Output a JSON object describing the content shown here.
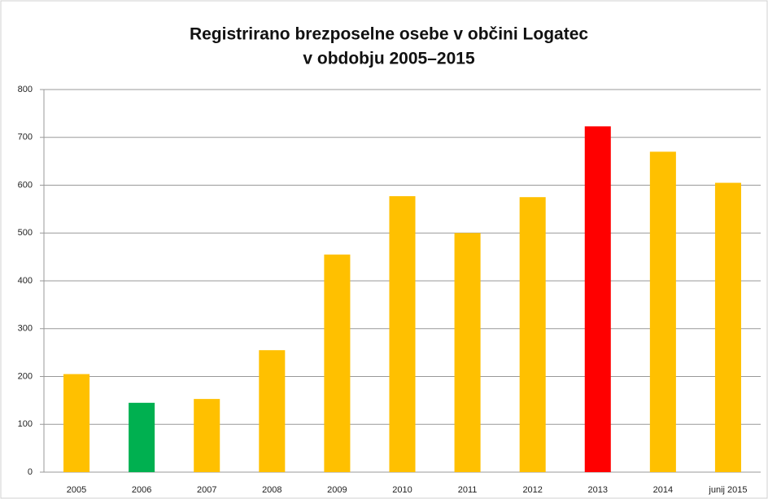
{
  "chart_data": {
    "type": "bar",
    "title": [
      "Registrirano brezposelne osebe v občini Logatec",
      "v obdobju 2005–2015"
    ],
    "categories": [
      "2005",
      "2006",
      "2007",
      "2008",
      "2009",
      "2010",
      "2011",
      "2012",
      "2013",
      "2014",
      "junij 2015"
    ],
    "values": [
      205,
      145,
      153,
      255,
      455,
      577,
      500,
      575,
      723,
      670,
      605
    ],
    "colors": [
      "#ffc000",
      "#00b050",
      "#ffc000",
      "#ffc000",
      "#ffc000",
      "#ffc000",
      "#ffc000",
      "#ffc000",
      "#ff0000",
      "#ffc000",
      "#ffc000"
    ],
    "ylim": [
      0,
      800
    ],
    "yticks": [
      0,
      100,
      200,
      300,
      400,
      500,
      600,
      700,
      800
    ],
    "grid": true
  }
}
